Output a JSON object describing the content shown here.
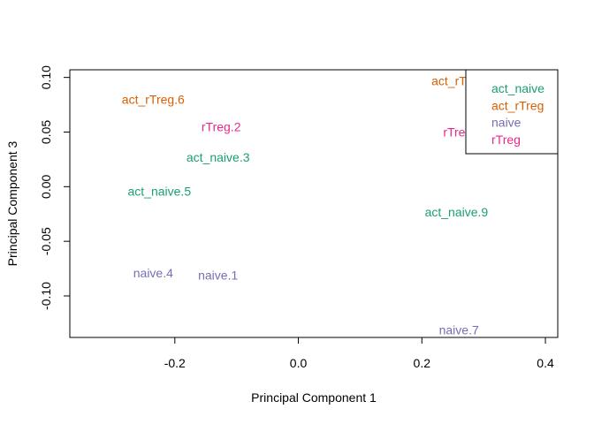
{
  "chart_data": {
    "type": "scatter",
    "title": "",
    "xlabel": "Principal Component 1",
    "ylabel": "Principal Component 3",
    "xlim": [
      -0.37,
      0.42
    ],
    "ylim": [
      -0.138,
      0.107
    ],
    "xticks": [
      -0.2,
      0.0,
      0.2,
      0.4
    ],
    "xtick_labels": [
      "-0.2",
      "0.0",
      "0.2",
      "0.4"
    ],
    "yticks": [
      -0.1,
      -0.05,
      0.0,
      0.05,
      0.1
    ],
    "ytick_labels": [
      "-0.10",
      "-0.05",
      "0.00",
      "0.05",
      "0.10"
    ],
    "grid": false,
    "legend_position": "top-right",
    "series": [
      {
        "name": "act_naive",
        "color": "#1B9E77"
      },
      {
        "name": "act_rTreg",
        "color": "#D95F02"
      },
      {
        "name": "naive",
        "color": "#7570B3"
      },
      {
        "name": "rTreg",
        "color": "#E7298A"
      }
    ],
    "points": [
      {
        "label": "act_rTreg.6",
        "group": "act_rTreg",
        "x": -0.235,
        "y": 0.08
      },
      {
        "label": "rTreg.2",
        "group": "rTreg",
        "x": -0.125,
        "y": 0.055
      },
      {
        "label": "act_naive.3",
        "group": "act_naive",
        "x": -0.13,
        "y": 0.027
      },
      {
        "label": "act_naive.5",
        "group": "act_naive",
        "x": -0.225,
        "y": -0.004
      },
      {
        "label": "naive.4",
        "group": "naive",
        "x": -0.235,
        "y": -0.079
      },
      {
        "label": "naive.1",
        "group": "naive",
        "x": -0.13,
        "y": -0.081
      },
      {
        "label": "act_rTreg",
        "group": "act_rTreg",
        "x": 0.258,
        "y": 0.097
      },
      {
        "label": "rTreg",
        "group": "rTreg",
        "x": 0.258,
        "y": 0.05
      },
      {
        "label": "act_naive.9",
        "group": "act_naive",
        "x": 0.256,
        "y": -0.023
      },
      {
        "label": "naive.7",
        "group": "naive",
        "x": 0.26,
        "y": -0.131
      }
    ]
  }
}
